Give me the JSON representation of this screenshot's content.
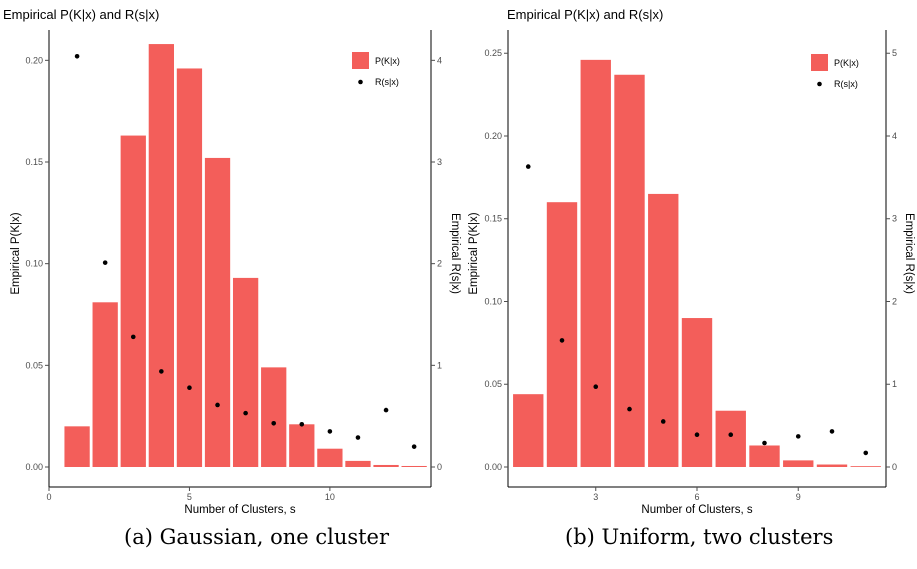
{
  "colors": {
    "bar": "#F35E5A",
    "point": "#000000",
    "axis": "#000000",
    "tick": "#4d4d4d"
  },
  "chart_data": [
    {
      "type": "bar",
      "title": "Empirical P(K|x) and R(s|x)",
      "xlabel": "Number of Clusters, s",
      "ylabel": "Empirical P(K|x)",
      "y2label": "Empirical R(s|x)",
      "caption": "(a) Gaussian, one cluster",
      "xlim": [
        0,
        13.6
      ],
      "ylim": [
        0,
        0.21
      ],
      "y2lim": [
        0,
        4.2
      ],
      "x_ticks": [
        0,
        5,
        10
      ],
      "x_tick_labels": [
        "0",
        "5",
        "10"
      ],
      "y_ticks": [
        0,
        0.05,
        0.1,
        0.15,
        0.2
      ],
      "y_tick_labels": [
        "0.00",
        "0.05",
        "0.10",
        "0.15",
        "0.20"
      ],
      "y2_ticks": [
        0,
        1,
        2,
        3,
        4
      ],
      "y2_tick_labels": [
        "0",
        "1",
        "2",
        "3",
        "4"
      ],
      "legend_position": "top-right",
      "series": [
        {
          "name": "P(K|x)",
          "kind": "bar",
          "axis": "left",
          "x": [
            1,
            2,
            3,
            4,
            5,
            6,
            7,
            8,
            9,
            10,
            11,
            12,
            13
          ],
          "values": [
            0.02,
            0.081,
            0.163,
            0.208,
            0.196,
            0.152,
            0.093,
            0.049,
            0.021,
            0.009,
            0.003,
            0.001,
            0.0005
          ]
        },
        {
          "name": "R(s|x)",
          "kind": "point",
          "axis": "right",
          "x": [
            1,
            2,
            3,
            4,
            5,
            6,
            7,
            8,
            9,
            10,
            11,
            12,
            13
          ],
          "values": [
            4.04,
            2.01,
            1.28,
            0.94,
            0.78,
            0.61,
            0.53,
            0.43,
            0.42,
            0.35,
            0.29,
            0.56,
            0.2
          ]
        }
      ]
    },
    {
      "type": "bar",
      "title": "Empirical P(K|x) and R(s|x)",
      "xlabel": "Number of Clusters, s",
      "ylabel": "Empirical P(K|x)",
      "y2label": "Empirical R(s|x)",
      "caption": "(b) Uniform, two clusters",
      "xlim": [
        0.4,
        11.6
      ],
      "ylim": [
        0,
        0.258
      ],
      "y2lim": [
        0,
        5.16
      ],
      "x_ticks": [
        3,
        6,
        9
      ],
      "x_tick_labels": [
        "3",
        "6",
        "9"
      ],
      "y_ticks": [
        0,
        0.05,
        0.1,
        0.15,
        0.2,
        0.25
      ],
      "y_tick_labels": [
        "0.00",
        "0.05",
        "0.10",
        "0.15",
        "0.20",
        "0.25"
      ],
      "y2_ticks": [
        0,
        1,
        2,
        3,
        4,
        5
      ],
      "y2_tick_labels": [
        "0",
        "1",
        "2",
        "3",
        "4",
        "5"
      ],
      "legend_position": "top-right",
      "series": [
        {
          "name": "P(K|x)",
          "kind": "bar",
          "axis": "left",
          "x": [
            1,
            2,
            3,
            4,
            5,
            6,
            7,
            8,
            9,
            10,
            11
          ],
          "values": [
            0.044,
            0.16,
            0.246,
            0.237,
            0.165,
            0.09,
            0.034,
            0.013,
            0.004,
            0.0015,
            0.0005
          ]
        },
        {
          "name": "R(s|x)",
          "kind": "point",
          "axis": "right",
          "x": [
            1,
            2,
            3,
            4,
            5,
            6,
            7,
            8,
            9,
            10,
            11
          ],
          "values": [
            3.63,
            1.53,
            0.97,
            0.7,
            0.55,
            0.39,
            0.39,
            0.29,
            0.37,
            0.43,
            0.17
          ]
        }
      ]
    }
  ]
}
